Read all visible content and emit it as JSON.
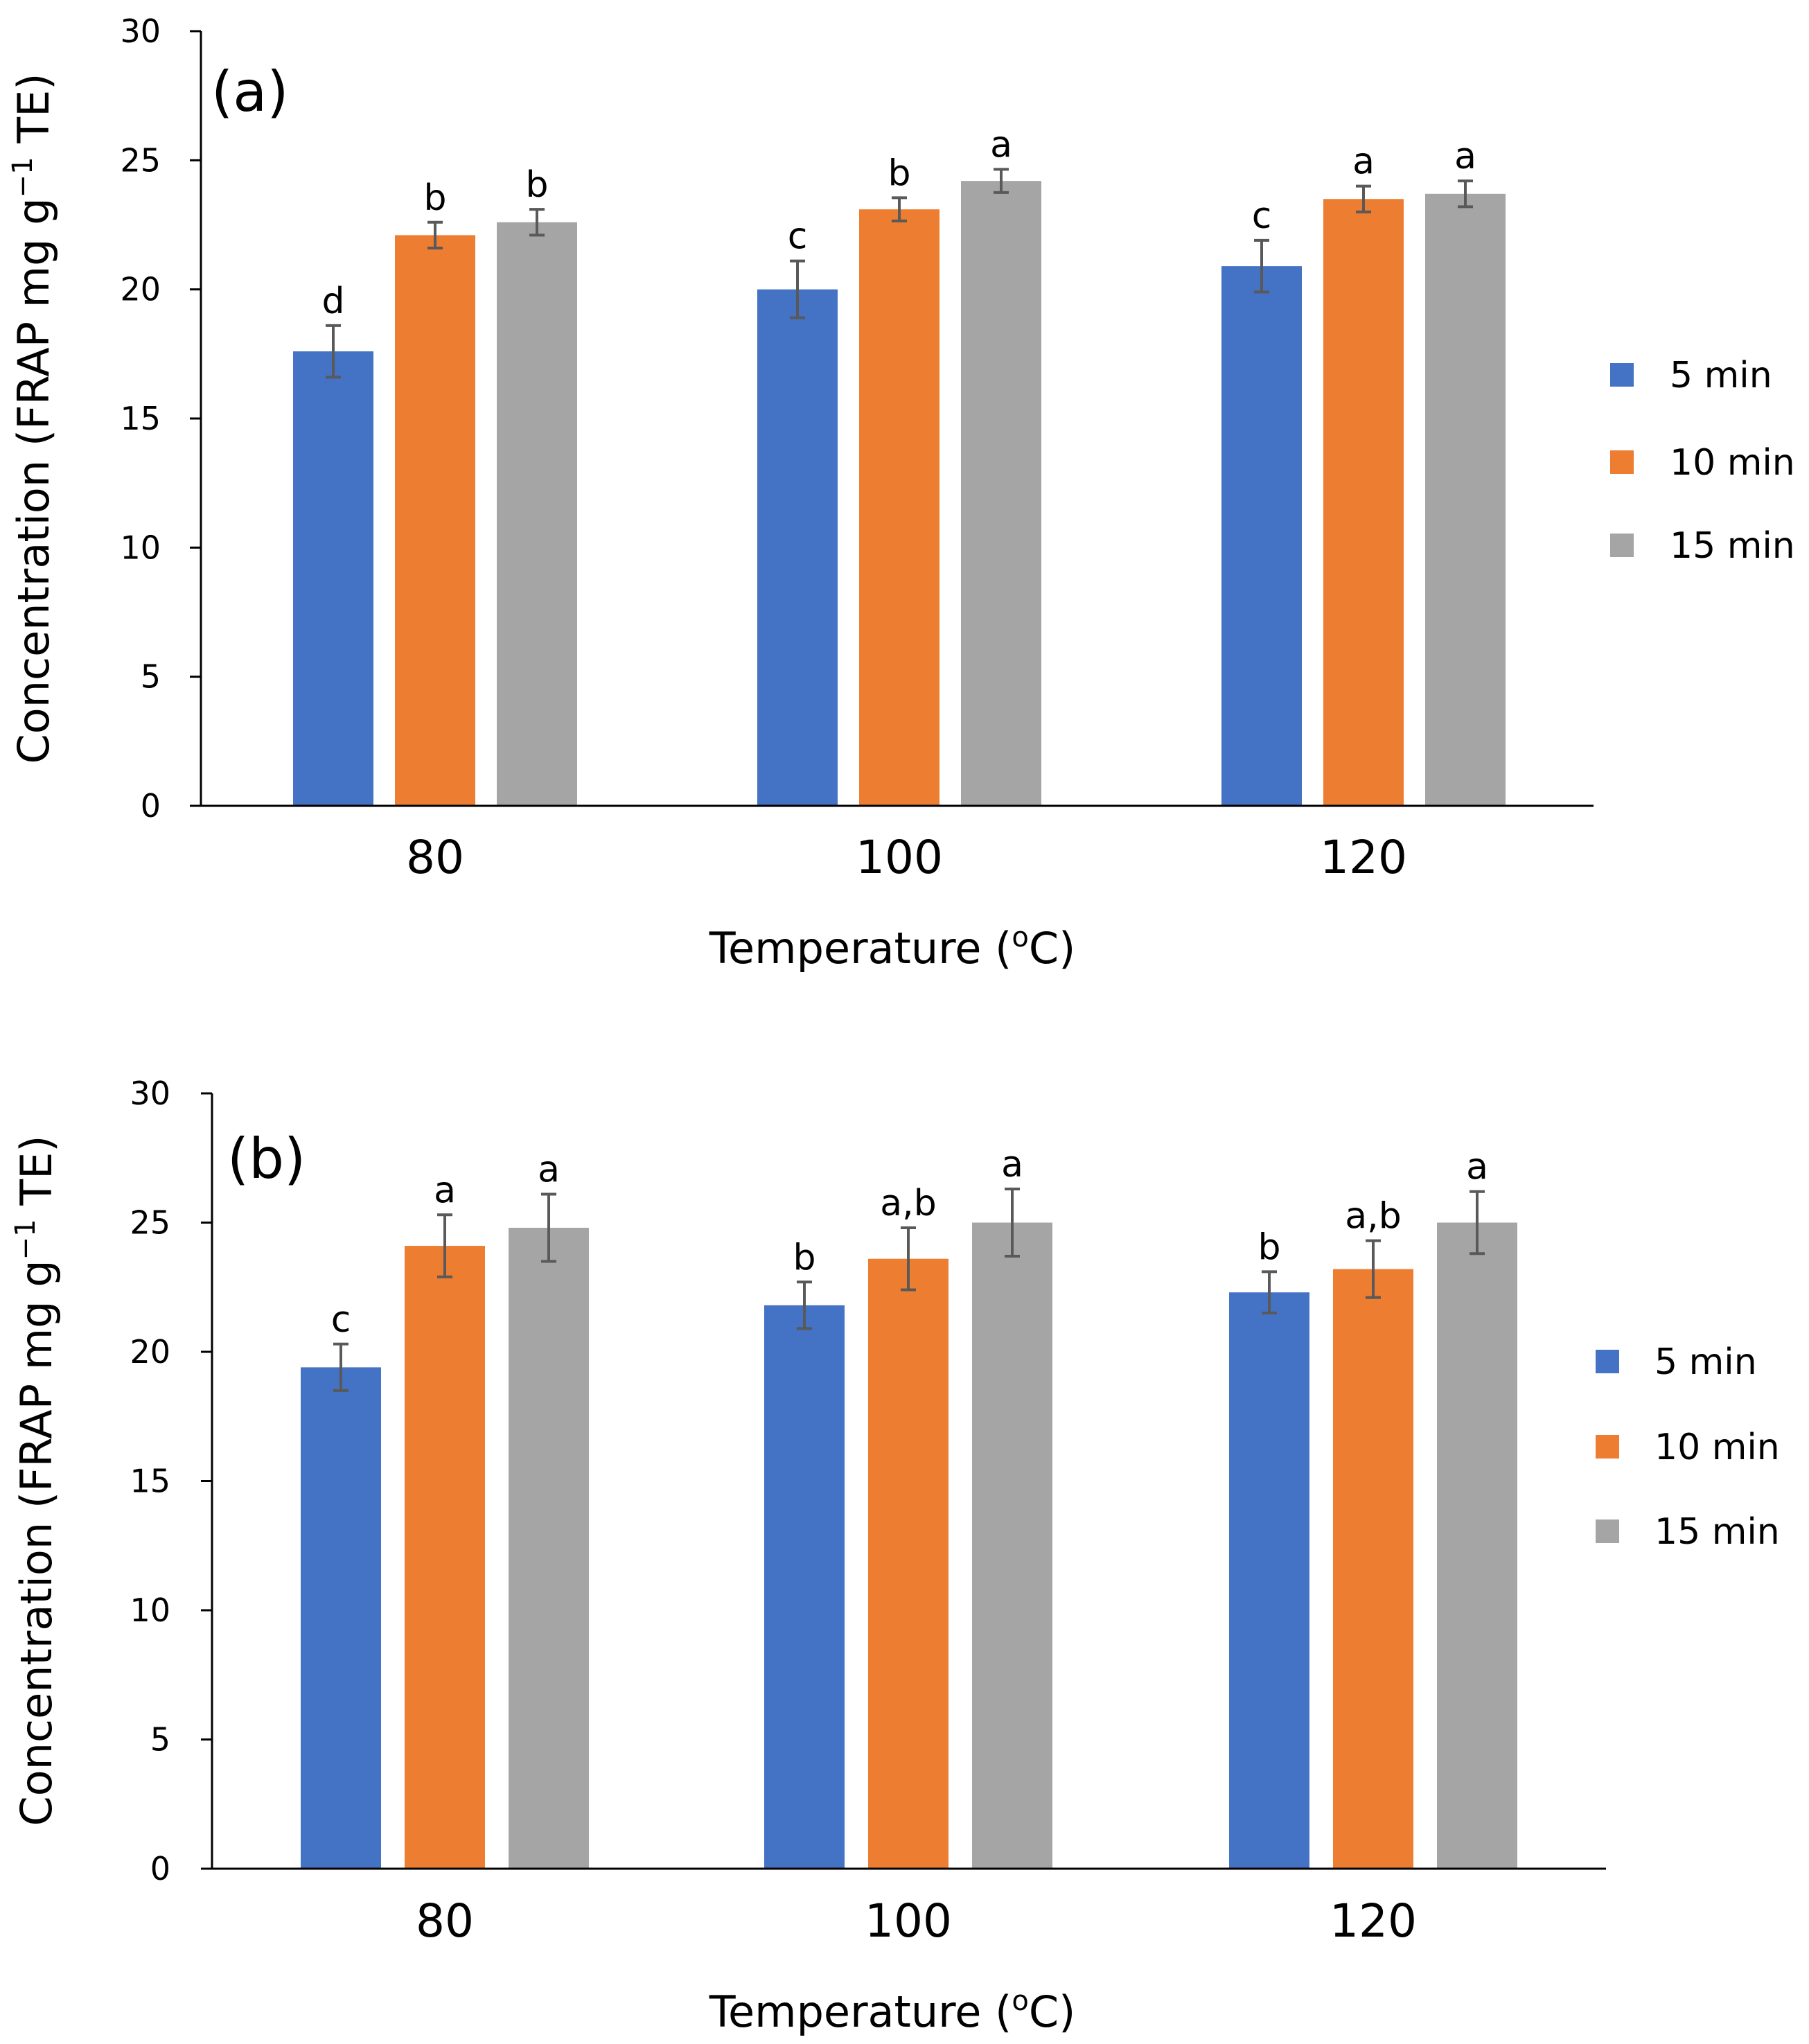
{
  "chart_data": [
    {
      "type": "bar",
      "panel_label": "(a)",
      "categories": [
        "80",
        "100",
        "120"
      ],
      "xlabel_main": "Temperature (",
      "xlabel_sup": "o",
      "xlabel_end": "C)",
      "ylabel_main": "Concentration (FRAP mg g",
      "ylabel_sup": "−1",
      "ylabel_end": " TE)",
      "ylim": [
        0,
        30
      ],
      "yticks": [
        "0",
        "5",
        "10",
        "15",
        "20",
        "25",
        "30"
      ],
      "legend_position": "right",
      "series": [
        {
          "name": "5 min",
          "color": "#4472C4",
          "values": [
            17.6,
            20.0,
            20.9
          ],
          "errors": [
            1.0,
            1.1,
            1.0
          ],
          "letters": [
            "d",
            "c",
            "c"
          ]
        },
        {
          "name": "10 min",
          "color": "#ED7D31",
          "values": [
            22.1,
            23.1,
            23.5
          ],
          "errors": [
            0.5,
            0.45,
            0.5
          ],
          "letters": [
            "b",
            "b",
            "a"
          ]
        },
        {
          "name": "15 min",
          "color": "#A5A5A5",
          "values": [
            22.6,
            24.2,
            23.7
          ],
          "errors": [
            0.5,
            0.45,
            0.5
          ],
          "letters": [
            "b",
            "a",
            "a"
          ]
        }
      ]
    },
    {
      "type": "bar",
      "panel_label": "(b)",
      "categories": [
        "80",
        "100",
        "120"
      ],
      "xlabel_main": "Temperature (",
      "xlabel_sup": "o",
      "xlabel_end": "C)",
      "ylabel_main": "Concentration (FRAP mg g",
      "ylabel_sup": "−1",
      "ylabel_end": " TE)",
      "ylim": [
        0,
        30
      ],
      "yticks": [
        "0",
        "5",
        "10",
        "15",
        "20",
        "25",
        "30"
      ],
      "legend_position": "right",
      "series": [
        {
          "name": "5 min",
          "color": "#4472C4",
          "values": [
            19.4,
            21.8,
            22.3
          ],
          "errors": [
            0.9,
            0.9,
            0.8
          ],
          "letters": [
            "c",
            "b",
            "b"
          ]
        },
        {
          "name": "10 min",
          "color": "#ED7D31",
          "values": [
            24.1,
            23.6,
            23.2
          ],
          "errors": [
            1.2,
            1.2,
            1.1
          ],
          "letters": [
            "a",
            "a,b",
            "a,b"
          ]
        },
        {
          "name": "15 min",
          "color": "#A5A5A5",
          "values": [
            24.8,
            25.0,
            25.0
          ],
          "errors": [
            1.3,
            1.3,
            1.2
          ],
          "letters": [
            "a",
            "a",
            "a"
          ]
        }
      ]
    }
  ]
}
